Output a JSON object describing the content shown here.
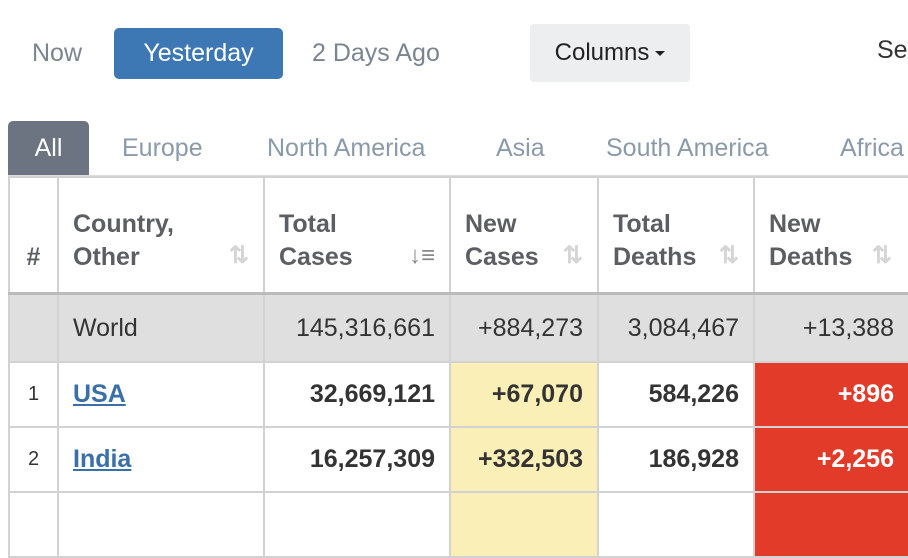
{
  "day_filters": {
    "now": "Now",
    "yesterday": "Yesterday",
    "two_days": "2 Days Ago"
  },
  "columns_button": "Columns",
  "search_label": "Se",
  "tabs": [
    "All",
    "Europe",
    "North America",
    "Asia",
    "South America",
    "Africa"
  ],
  "headers": {
    "rank": "#",
    "country": [
      "Country,",
      "Other"
    ],
    "total_cases": [
      "Total",
      "Cases"
    ],
    "new_cases": [
      "New",
      "Cases"
    ],
    "total_deaths": [
      "Total",
      "Deaths"
    ],
    "new_deaths": [
      "New",
      "Deaths"
    ]
  },
  "world": {
    "country": "World",
    "total_cases": "145,316,661",
    "new_cases": "+884,273",
    "total_deaths": "3,084,467",
    "new_deaths": "+13,388"
  },
  "rows": [
    {
      "rank": "1",
      "country": "USA",
      "total_cases": "32,669,121",
      "new_cases": "+67,070",
      "total_deaths": "584,226",
      "new_deaths": "+896"
    },
    {
      "rank": "2",
      "country": "India",
      "total_cases": "16,257,309",
      "new_cases": "+332,503",
      "total_deaths": "186,928",
      "new_deaths": "+2,256"
    }
  ],
  "colors": {
    "accent": "#3d78b5",
    "new_cases_bg": "#fbefb8",
    "new_deaths_bg": "#e23b2a"
  }
}
